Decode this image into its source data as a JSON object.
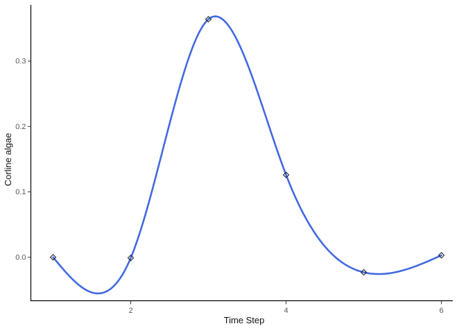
{
  "chart_data": {
    "type": "line",
    "title": "",
    "xlabel": "Time Step",
    "ylabel": "Corline algae",
    "x": [
      1,
      2,
      3,
      4,
      5,
      6
    ],
    "values": [
      0.0,
      -0.001,
      0.364,
      0.126,
      -0.023,
      0.003
    ],
    "series_name": "Corline algae",
    "x_tick_values": [
      2,
      4,
      6
    ],
    "x_tick_labels": [
      "2",
      "4",
      "6"
    ],
    "y_tick_values": [
      0.0,
      0.1,
      0.2,
      0.3
    ],
    "y_tick_labels": [
      "0.0",
      "0.1",
      "0.2",
      "0.3"
    ],
    "xlim": [
      0.714,
      6.147
    ],
    "ylim": [
      -0.067,
      0.386
    ],
    "grid": false,
    "legend": false,
    "interpolation": "natural-cubic-spline",
    "line_color": "#4169E1",
    "marker": "open-diamond",
    "marker_stroke_color": "#222222",
    "axis_line_color": "#000000",
    "tick_color": "#333333",
    "tick_label_color": "#595959",
    "axis_title_color": "#111111",
    "background_color": "#ffffff"
  }
}
